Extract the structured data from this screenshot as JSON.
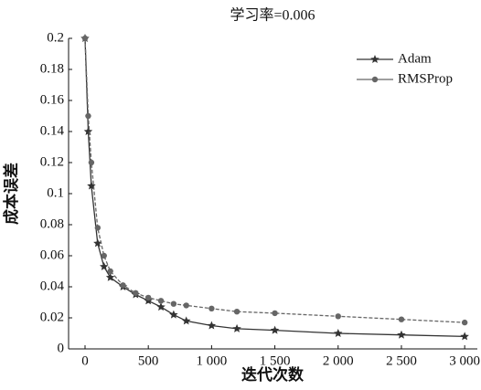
{
  "chart_data": {
    "type": "line",
    "title": "学习率=0.006",
    "x_label": "迭代次数",
    "y_label": "成本误差",
    "x": [
      0,
      25,
      50,
      100,
      150,
      200,
      300,
      400,
      500,
      600,
      700,
      800,
      1000,
      1200,
      1500,
      2000,
      2500,
      3000
    ],
    "series": [
      {
        "name": "Adam",
        "color": "#333333",
        "marker": "star",
        "values": [
          0.2,
          0.14,
          0.105,
          0.068,
          0.053,
          0.046,
          0.04,
          0.035,
          0.031,
          0.027,
          0.022,
          0.018,
          0.015,
          0.013,
          0.012,
          0.01,
          0.009,
          0.008
        ]
      },
      {
        "name": "RMSProp",
        "color": "#666666",
        "marker": "circle",
        "values": [
          0.2,
          0.15,
          0.12,
          0.078,
          0.06,
          0.05,
          0.041,
          0.036,
          0.033,
          0.031,
          0.029,
          0.028,
          0.026,
          0.024,
          0.023,
          0.021,
          0.019,
          0.017
        ]
      }
    ],
    "xlim": [
      -130,
      3100
    ],
    "ylim": [
      0,
      0.2
    ],
    "xticks": [
      0,
      500,
      {
        "value": 1000,
        "label": "1 000"
      },
      {
        "value": 1500,
        "label": "1 500"
      },
      {
        "value": 2000,
        "label": "2 000"
      },
      {
        "value": 2500,
        "label": "2 500"
      },
      {
        "value": 3000,
        "label": "3 000"
      }
    ],
    "yticks": [
      0,
      0.02,
      0.04,
      0.06,
      0.08,
      0.1,
      0.12,
      0.14,
      0.16,
      0.18,
      0.2
    ],
    "legend": "upper right"
  }
}
